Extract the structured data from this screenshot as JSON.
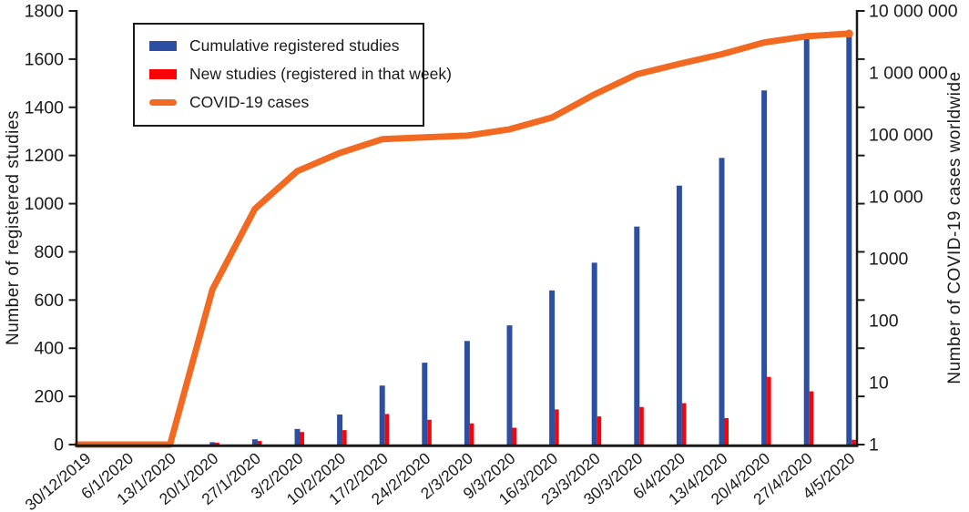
{
  "figure": {
    "type": "combo bar and line chart",
    "background": "#ffffff",
    "text_color": "#1a1a1a"
  },
  "legend": {
    "items": [
      {
        "label": "Cumulative registered studies",
        "color": "#2d4fa1",
        "swatch": "bar"
      },
      {
        "label": "New studies (registered in that week)",
        "color": "#fb0207",
        "swatch": "bar"
      },
      {
        "label": "COVID-19 cases",
        "color": "#f26a21",
        "swatch": "line"
      }
    ]
  },
  "chart_data": {
    "type": "bar",
    "subtype": "dual-axis bar + log line combo",
    "title": "",
    "categories": [
      "30/12/2019",
      "6/1/2020",
      "13/1/2020",
      "20/1/2020",
      "27/1/2020",
      "3/2/2020",
      "10/2/2020",
      "17/2/2020",
      "24/2/2020",
      "2/3/2020",
      "9/3/2020",
      "16/3/2020",
      "23/3/2020",
      "30/3/2020",
      "6/4/2020",
      "13/4/2020",
      "20/4/2020",
      "27/4/2020",
      "4/5/2020"
    ],
    "series": [
      {
        "name": "Cumulative registered studies",
        "type": "bar",
        "axis": "left",
        "color": "#2d4fa1",
        "values": [
          0,
          0,
          0,
          10,
          22,
          65,
          125,
          245,
          340,
          430,
          495,
          640,
          755,
          905,
          1075,
          1190,
          1470,
          1690,
          1700
        ]
      },
      {
        "name": "New studies (registered in that week)",
        "type": "bar",
        "axis": "left",
        "color": "#fb0207",
        "values": [
          0,
          0,
          0,
          8,
          15,
          52,
          60,
          127,
          103,
          88,
          70,
          146,
          117,
          156,
          172,
          110,
          281,
          221,
          20
        ]
      },
      {
        "name": "COVID-19 cases",
        "type": "line",
        "axis": "right",
        "color": "#f26a21",
        "values": [
          1,
          1,
          1,
          320,
          6400,
          26000,
          51000,
          85000,
          91000,
          97000,
          123000,
          190000,
          450000,
          950000,
          1400000,
          2000000,
          3100000,
          3900000,
          4300000
        ]
      }
    ],
    "left_axis": {
      "label": "Number of registered studies",
      "min": 0,
      "max": 1800,
      "tick_step": 200,
      "ticks": [
        0,
        200,
        400,
        600,
        800,
        1000,
        1200,
        1400,
        1600,
        1800
      ]
    },
    "right_axis": {
      "label": "Number of COVID-19 cases worldwide",
      "scale": "log10",
      "min": 1,
      "max": 10000000,
      "tick_labels": [
        "1",
        "10",
        "100",
        "1000",
        "10 000",
        "100 000",
        "1 000 000",
        "10 000 000"
      ]
    },
    "x_axis": {
      "tick_label_rotation_deg": -40
    },
    "grid": false,
    "legend_position": "upper left inside plot"
  }
}
